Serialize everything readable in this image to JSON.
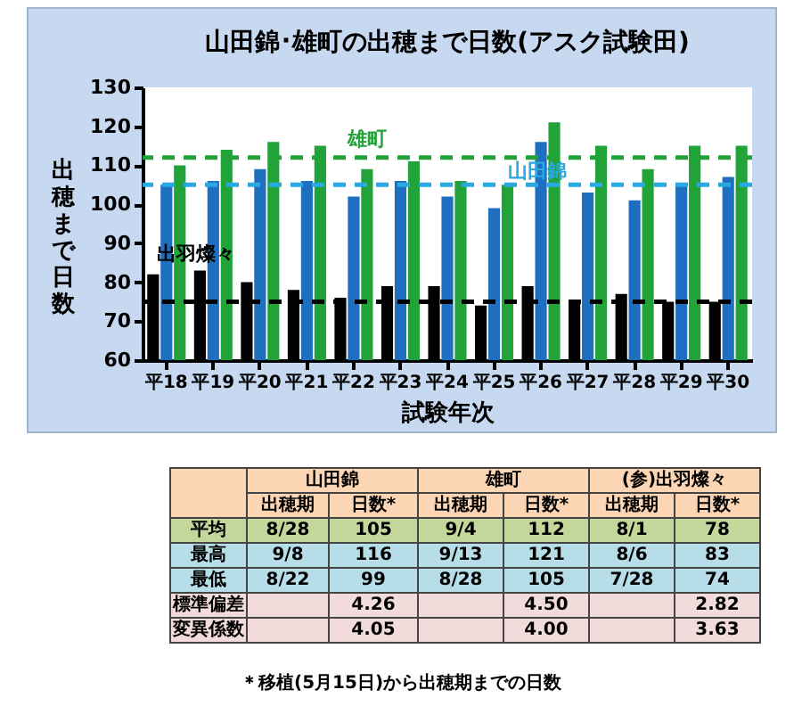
{
  "chart_data": [
    {
      "type": "bar",
      "title": "山田錦･雄町の出穂まで日数(アスク試験田)",
      "xlabel": "試験年次",
      "ylabel": "出穂まで日数",
      "categories": [
        "平18",
        "平19",
        "平20",
        "平21",
        "平22",
        "平23",
        "平24",
        "平25",
        "平26",
        "平27",
        "平28",
        "平29",
        "平30"
      ],
      "series": [
        {
          "color": "#000000",
          "values": [
            82,
            83,
            80,
            78,
            76,
            79,
            79,
            74,
            79,
            75,
            77,
            75,
            75
          ]
        },
        {
          "color": "#1f6fc0",
          "values": [
            105,
            106,
            109,
            106,
            102,
            106,
            102,
            99,
            116,
            103,
            101,
            105,
            107
          ]
        },
        {
          "color": "#22a33a",
          "values": [
            110,
            114,
            116,
            115,
            109,
            111,
            106,
            105,
            121,
            115,
            109,
            115,
            115
          ]
        }
      ],
      "ylim": [
        60,
        130
      ],
      "yticks": [
        60,
        70,
        80,
        90,
        100,
        110,
        120,
        130
      ],
      "grid": false,
      "ref_lines": [
        {
          "axis": "y",
          "value": 112,
          "label": "雄町",
          "color": "#22a33a",
          "line_style": "dashed"
        },
        {
          "axis": "y",
          "value": 105,
          "label": "山田錦",
          "color": "#29a9e0",
          "line_style": "dashed"
        },
        {
          "axis": "y",
          "value": 75,
          "label": "出羽燦々",
          "color": "#000000",
          "line_style": "dashed"
        }
      ]
    },
    {
      "type": "other",
      "categories": [
        "出穂期",
        "日数*",
        "出穂期",
        "日数*",
        "出穂期",
        "日数*"
      ],
      "y_categories": [
        "平均",
        "最高",
        "最低",
        "標準偏差",
        "変異係数"
      ],
      "cell_labels": [
        [
          "8/28",
          "105",
          "9/4",
          "112",
          "8/1",
          "78"
        ],
        [
          "9/8",
          "116",
          "9/13",
          "121",
          "8/6",
          "83"
        ],
        [
          "8/22",
          "99",
          "8/28",
          "105",
          "7/28",
          "74"
        ],
        [
          null,
          "4.26",
          null,
          "4.50",
          null,
          "2.82"
        ],
        [
          null,
          "4.05",
          null,
          "4.00",
          null,
          "3.63"
        ]
      ],
      "annotations": [
        "山田錦",
        "雄町",
        "(参)出羽燦々",
        "＊移植(5月15日)から出穂期までの日数"
      ]
    }
  ]
}
